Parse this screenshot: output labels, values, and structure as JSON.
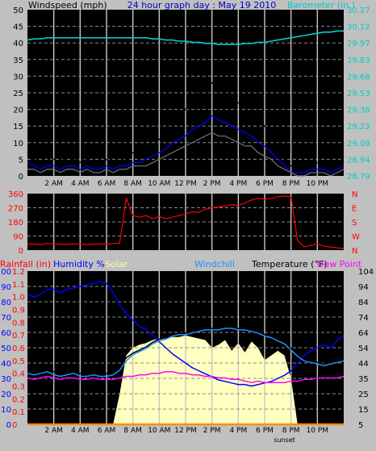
{
  "chart_data": [
    {
      "type": "line",
      "title": "24 hour graph day : May 19 2010",
      "left_label": "Windspeed (mph)",
      "right_label": "Barometer (in.)",
      "x_hours": [
        0,
        0.5,
        1,
        1.5,
        2,
        2.5,
        3,
        3.5,
        4,
        4.5,
        5,
        5.5,
        6,
        6.5,
        7,
        7.5,
        8,
        8.5,
        9,
        9.5,
        10,
        10.5,
        11,
        11.5,
        12,
        12.5,
        13,
        13.5,
        14,
        14.5,
        15,
        15.5,
        16,
        16.5,
        17,
        17.5,
        18,
        18.5,
        19,
        19.5,
        20,
        20.5,
        21,
        21.5,
        22,
        22.5,
        23,
        23.5,
        24
      ],
      "x_ticks": [
        "2 AM",
        "4 AM",
        "6 AM",
        "8 AM",
        "10 AM",
        "12 PM",
        "2 PM",
        "4 PM",
        "6 PM",
        "8 PM",
        "10 PM"
      ],
      "y_left_ticks": [
        "0",
        "5",
        "10",
        "15",
        "20",
        "25",
        "30",
        "35",
        "40",
        "45",
        "50"
      ],
      "y_left_range": [
        0,
        50
      ],
      "y_right_ticks": [
        "28.79",
        "28.94",
        "29.09",
        "29.23",
        "29.38",
        "29.53",
        "29.68",
        "29.83",
        "29.97",
        "30.12",
        "30.27"
      ],
      "y_right_range": [
        28.79,
        30.27
      ],
      "series": [
        {
          "key": "gust",
          "color": "#000000",
          "axis": "left",
          "values": [
            7,
            5,
            4,
            6,
            5,
            4,
            6,
            5,
            4,
            5,
            4,
            3,
            5,
            4,
            6,
            5,
            7,
            6,
            8,
            9,
            11,
            13,
            15,
            18,
            20,
            22,
            25,
            27,
            28,
            26,
            25,
            23,
            22,
            21,
            20,
            17,
            15,
            12,
            9,
            5,
            3,
            2,
            2,
            3,
            4,
            3,
            2,
            3,
            6
          ]
        },
        {
          "key": "wind",
          "color": "#0000ff",
          "axis": "left",
          "values": [
            4,
            3,
            2,
            3,
            3,
            2,
            3,
            3,
            2,
            3,
            2,
            2,
            3,
            2,
            3,
            3,
            4,
            4,
            5,
            6,
            7,
            8,
            10,
            11,
            12,
            14,
            15,
            16,
            18,
            17,
            16,
            15,
            14,
            13,
            12,
            10,
            9,
            7,
            5,
            3,
            1,
            1,
            1,
            2,
            2,
            2,
            1,
            2,
            3
          ]
        },
        {
          "key": "wind_avg",
          "color": "#6e6e6e",
          "axis": "left",
          "values": [
            2,
            2,
            1,
            2,
            2,
            1,
            2,
            2,
            1,
            2,
            1,
            1,
            2,
            1,
            2,
            2,
            3,
            3,
            3,
            4,
            5,
            6,
            7,
            8,
            9,
            10,
            11,
            12,
            13,
            12,
            12,
            11,
            10,
            9,
            9,
            7,
            6,
            5,
            3,
            2,
            1,
            0,
            0,
            1,
            1,
            1,
            0,
            1,
            2
          ]
        },
        {
          "key": "barometer",
          "color": "#00cccc",
          "axis": "right",
          "values": [
            30.0,
            30.01,
            30.01,
            30.02,
            30.02,
            30.02,
            30.02,
            30.02,
            30.02,
            30.02,
            30.02,
            30.02,
            30.02,
            30.02,
            30.02,
            30.02,
            30.02,
            30.02,
            30.02,
            30.01,
            30.01,
            30.0,
            30.0,
            29.99,
            29.99,
            29.98,
            29.98,
            29.97,
            29.97,
            29.96,
            29.96,
            29.96,
            29.96,
            29.97,
            29.97,
            29.98,
            29.98,
            29.99,
            30.0,
            30.01,
            30.02,
            30.03,
            30.04,
            30.05,
            30.06,
            30.07,
            30.07,
            30.08,
            30.08
          ]
        }
      ]
    },
    {
      "type": "line",
      "y_left_ticks": [
        "0",
        "90",
        "180",
        "270",
        "360"
      ],
      "y_left_range": [
        0,
        360
      ],
      "y_right_ticks": [
        "N",
        "W",
        "S",
        "E",
        "N"
      ],
      "series": [
        {
          "key": "direction",
          "color": "#ff0000",
          "values": [
            40,
            38,
            35,
            42,
            40,
            38,
            36,
            40,
            38,
            35,
            38,
            40,
            38,
            42,
            45,
            330,
            220,
            210,
            220,
            200,
            215,
            200,
            210,
            220,
            230,
            245,
            240,
            260,
            270,
            275,
            280,
            290,
            285,
            300,
            320,
            330,
            325,
            330,
            340,
            345,
            340,
            60,
            20,
            30,
            40,
            25,
            20,
            15,
            10
          ]
        }
      ]
    },
    {
      "type": "line",
      "legend": [
        "Rainfall (in)",
        "Humidity %",
        "Solar",
        "Windchill",
        "Temperature (°F)",
        "Dew Point"
      ],
      "x_ticks": [
        "2 AM",
        "4 AM",
        "6 AM",
        "8 AM",
        "10 AM",
        "12 PM",
        "2 PM",
        "4 PM",
        "6 PM",
        "8 PM",
        "10 PM"
      ],
      "sunset_label": "sunset",
      "humidity_ticks": [
        "0",
        "10",
        "20",
        "30",
        "40",
        "50",
        "60",
        "70",
        "80",
        "90",
        "100"
      ],
      "rain_ticks": [
        "0",
        "0.1",
        "0.2",
        "0.3",
        "0.4",
        "0.5",
        "0.6",
        "0.7",
        "0.8",
        "0.9",
        "1.0",
        "1.1",
        "1.2"
      ],
      "temp_ticks": [
        "5",
        "15",
        "25",
        "35",
        "44",
        "54",
        "64",
        "74",
        "84",
        "94",
        "104"
      ],
      "temp_range": [
        5,
        104
      ],
      "series": [
        {
          "key": "humidity",
          "color": "#0000ff",
          "values": [
            85,
            83,
            85,
            88,
            88,
            86,
            88,
            89,
            90,
            91,
            92,
            93,
            92,
            86,
            78,
            72,
            68,
            64,
            62,
            58,
            54,
            50,
            46,
            43,
            40,
            37,
            35,
            33,
            31,
            29,
            28,
            27,
            26,
            26,
            25,
            26,
            27,
            28,
            30,
            32,
            35,
            40,
            45,
            48,
            50,
            52,
            50,
            55,
            58
          ]
        },
        {
          "key": "temperature",
          "color": "#000000",
          "values": [
            40,
            39,
            40,
            41,
            39,
            38,
            39,
            40,
            38,
            38,
            39,
            38,
            38,
            39,
            42,
            48,
            51,
            53,
            55,
            58,
            60,
            61,
            63,
            64,
            64,
            65,
            66,
            67,
            67,
            67,
            68,
            68,
            67,
            67,
            66,
            65,
            63,
            62,
            60,
            58,
            54,
            50,
            47,
            46,
            45,
            44,
            45,
            46,
            47
          ]
        },
        {
          "key": "windchill",
          "color": "#1e90ff",
          "values": [
            38,
            37,
            38,
            39,
            37,
            36,
            37,
            38,
            36,
            36,
            37,
            36,
            36,
            37,
            40,
            46,
            50,
            52,
            54,
            57,
            59,
            60,
            62,
            63,
            63,
            64,
            65,
            66,
            66,
            66,
            67,
            67,
            66,
            66,
            65,
            64,
            62,
            61,
            59,
            57,
            53,
            49,
            46,
            45,
            44,
            43,
            44,
            45,
            46
          ]
        },
        {
          "key": "dewpoint",
          "color": "#ff00ff",
          "values": [
            35,
            34,
            35,
            36,
            35,
            34,
            35,
            35,
            34,
            34,
            35,
            34,
            34,
            34,
            35,
            36,
            36,
            37,
            37,
            38,
            38,
            39,
            39,
            38,
            38,
            37,
            37,
            36,
            36,
            35,
            35,
            34,
            34,
            33,
            32,
            33,
            32,
            32,
            32,
            32,
            33,
            33,
            34,
            34,
            35,
            35,
            35,
            35,
            36
          ]
        },
        {
          "key": "solar",
          "color": "#ffffc0",
          "values": [
            0,
            0,
            0,
            0,
            0,
            0,
            0,
            0,
            0,
            0,
            0,
            0,
            0,
            0,
            20,
            45,
            50,
            52,
            53,
            55,
            56,
            56,
            57,
            57,
            58,
            57,
            56,
            55,
            50,
            52,
            55,
            48,
            53,
            47,
            54,
            50,
            42,
            45,
            48,
            45,
            30,
            0,
            0,
            0,
            0,
            0,
            0,
            0,
            0
          ]
        },
        {
          "key": "rain",
          "color": "#ff8c00",
          "values": [
            0,
            0,
            0,
            0,
            0,
            0,
            0,
            0,
            0,
            0,
            0,
            0,
            0,
            0,
            0,
            0,
            0,
            0,
            0,
            0,
            0,
            0,
            0,
            0,
            0,
            0,
            0,
            0,
            0,
            0,
            0,
            0,
            0,
            0,
            0,
            0,
            0,
            0,
            0,
            0,
            0,
            0,
            0,
            0,
            0,
            0,
            0,
            0,
            0
          ]
        }
      ]
    }
  ]
}
